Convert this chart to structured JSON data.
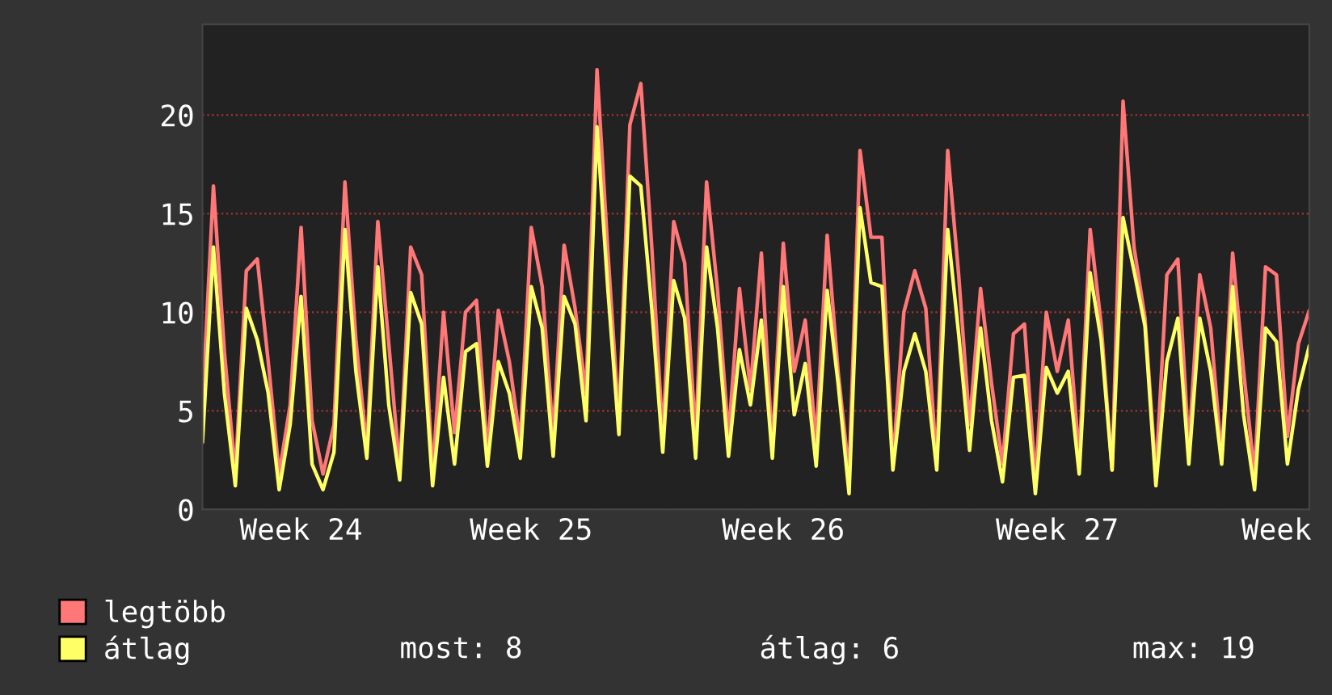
{
  "chart_data": {
    "type": "line",
    "categories": [
      null,
      null,
      null,
      null,
      null,
      null,
      null,
      null,
      null,
      "Week 24",
      null,
      null,
      null,
      null,
      null,
      null,
      null,
      null,
      null,
      null,
      null,
      null,
      null,
      null,
      null,
      null,
      null,
      null,
      null,
      null,
      "Week 25",
      null,
      null,
      null,
      null,
      null,
      null,
      null,
      null,
      null,
      null,
      null,
      null,
      null,
      null,
      null,
      null,
      null,
      null,
      null,
      null,
      null,
      null,
      "Week 26",
      null,
      null,
      null,
      null,
      null,
      null,
      null,
      null,
      null,
      null,
      null,
      null,
      null,
      null,
      null,
      null,
      null,
      null,
      null,
      null,
      null,
      null,
      null,
      null,
      "Week 27",
      null,
      null,
      null,
      null,
      null,
      null,
      null,
      null,
      null,
      null,
      null,
      null,
      null,
      null,
      null,
      null,
      null,
      null,
      null,
      "Week",
      null,
      null,
      null
    ],
    "series": [
      {
        "name": "legtöbb",
        "color": "#ff7777",
        "values": [
          5.3,
          16.4,
          8.0,
          1.8,
          12.1,
          12.7,
          7.5,
          1.8,
          5.3,
          14.3,
          4.5,
          1.8,
          4.3,
          16.6,
          8.6,
          3.1,
          14.6,
          8.4,
          2.0,
          13.3,
          11.9,
          1.8,
          10.0,
          3.9,
          10.0,
          10.6,
          2.9,
          10.1,
          7.5,
          3.4,
          14.3,
          11.3,
          3.7,
          13.4,
          10.2,
          5.9,
          22.3,
          13.0,
          4.5,
          19.5,
          21.6,
          13.3,
          3.7,
          14.6,
          12.5,
          3.7,
          16.6,
          11.1,
          3.7,
          11.2,
          6.1,
          13.0,
          3.1,
          13.5,
          7.0,
          9.6,
          3.4,
          13.9,
          7.0,
          1.8,
          18.2,
          13.8,
          13.8,
          2.3,
          10.0,
          12.1,
          10.2,
          2.3,
          18.2,
          11.9,
          4.3,
          11.2,
          6.4,
          2.3,
          8.9,
          9.4,
          1.5,
          10.0,
          7.0,
          9.6,
          2.6,
          14.2,
          9.4,
          2.0,
          20.7,
          13.3,
          9.7,
          1.8,
          11.9,
          12.7,
          3.1,
          11.9,
          9.2,
          2.6,
          13.0,
          7.0,
          1.8,
          12.3,
          11.9,
          3.7,
          8.4,
          10.1
        ]
      },
      {
        "name": "átlag",
        "color": "#ffff66",
        "values": [
          3.4,
          13.3,
          5.9,
          1.2,
          10.2,
          8.6,
          5.9,
          1.0,
          4.3,
          10.8,
          2.3,
          1.0,
          2.9,
          14.2,
          7.0,
          2.6,
          12.3,
          5.3,
          1.5,
          11.0,
          9.4,
          1.2,
          6.7,
          2.3,
          8.0,
          8.4,
          2.2,
          7.5,
          5.9,
          2.6,
          11.3,
          9.2,
          2.7,
          10.8,
          9.4,
          4.5,
          19.4,
          11.1,
          3.8,
          16.9,
          16.4,
          10.2,
          2.9,
          11.6,
          9.7,
          2.6,
          13.3,
          9.2,
          2.7,
          8.1,
          5.3,
          9.6,
          2.6,
          11.3,
          4.8,
          7.4,
          2.2,
          11.1,
          6.4,
          0.8,
          15.3,
          11.5,
          11.3,
          2.0,
          7.0,
          8.9,
          7.0,
          2.0,
          14.2,
          8.9,
          3.0,
          9.2,
          4.5,
          1.4,
          6.7,
          6.8,
          0.8,
          7.2,
          5.9,
          7.0,
          1.8,
          12.0,
          8.6,
          2.0,
          14.8,
          12.1,
          9.3,
          1.2,
          7.5,
          9.7,
          2.3,
          9.7,
          7.0,
          2.3,
          11.3,
          4.8,
          1.0,
          9.2,
          8.5,
          2.3,
          6.1,
          8.3
        ]
      }
    ],
    "ylim": [
      0,
      24.6
    ],
    "yticks": [
      0,
      5,
      10,
      15,
      20
    ],
    "grid": "y",
    "legend": "bottom",
    "line_style": "solid",
    "marker": "none",
    "annotations": [
      "most: 8",
      "átlag: 6",
      "max: 19"
    ]
  }
}
